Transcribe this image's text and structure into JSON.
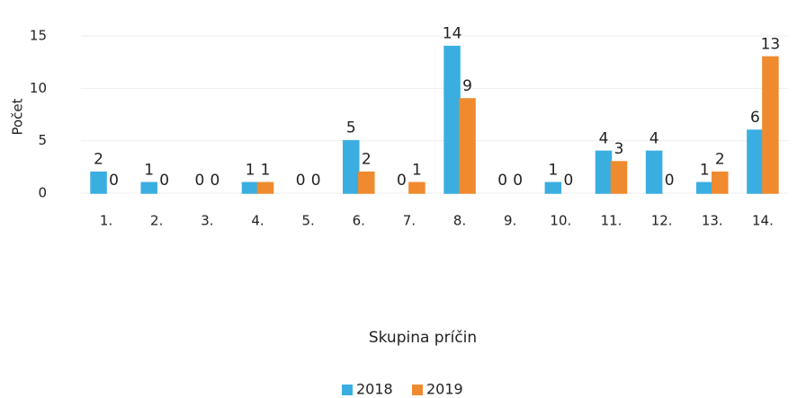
{
  "chart_data": {
    "type": "bar",
    "categories": [
      "1.",
      "2.",
      "3.",
      "4.",
      "5.",
      "6.",
      "7.",
      "8.",
      "9.",
      "10.",
      "11.",
      "12.",
      "13.",
      "14."
    ],
    "series": [
      {
        "name": "2018",
        "color": "#3aaee0",
        "values": [
          2,
          1,
          0,
          1,
          0,
          5,
          0,
          14,
          0,
          1,
          4,
          4,
          1,
          6
        ]
      },
      {
        "name": "2019",
        "color": "#f08a2e",
        "values": [
          0,
          0,
          0,
          1,
          0,
          2,
          1,
          9,
          0,
          0,
          3,
          0,
          2,
          13
        ]
      }
    ],
    "ylabel": "Počet",
    "xlabel": "Skupina príčin",
    "ylim": [
      0,
      15
    ],
    "yticks": [
      0,
      5,
      10,
      15
    ],
    "grid": true,
    "legend": "bottom"
  }
}
